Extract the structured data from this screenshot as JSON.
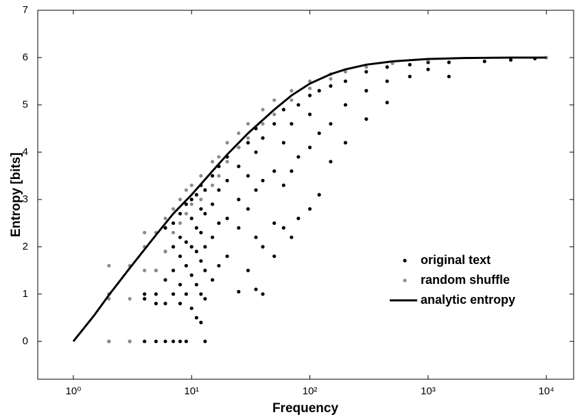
{
  "chart_data": {
    "type": "scatter",
    "x_label": "Frequency",
    "y_label": "Entropy [bits]",
    "xlog": true,
    "xlim": [
      0.5,
      17000
    ],
    "ylim": [
      -0.8,
      7
    ],
    "xticks": [
      {
        "value": 1,
        "label": "10⁰"
      },
      {
        "value": 10,
        "label": "10¹"
      },
      {
        "value": 100,
        "label": "10²"
      },
      {
        "value": 1000,
        "label": "10³"
      },
      {
        "value": 10000,
        "label": "10⁴"
      }
    ],
    "yticks": [
      0,
      1,
      2,
      3,
      4,
      5,
      6,
      7
    ],
    "legend": "lower right",
    "series": [
      {
        "name": "original text",
        "color": "#000000",
        "style": "points",
        "x": [
          2,
          2,
          3,
          4,
          4,
          4,
          5,
          5,
          5,
          5,
          6,
          6,
          6,
          6,
          6,
          7,
          7,
          7,
          7,
          7,
          8,
          8,
          8,
          8,
          8,
          8,
          9,
          9,
          9,
          9,
          9,
          10,
          10,
          10,
          10,
          10,
          11,
          11,
          11,
          11,
          11,
          12,
          12,
          12,
          12,
          12,
          12,
          13,
          13,
          13,
          13,
          13,
          13,
          15,
          15,
          15,
          15,
          17,
          17,
          17,
          17,
          20,
          20,
          20,
          20,
          25,
          25,
          25,
          25,
          25,
          30,
          30,
          30,
          30,
          35,
          35,
          35,
          35,
          35,
          40,
          40,
          40,
          40,
          50,
          50,
          50,
          50,
          60,
          60,
          60,
          60,
          70,
          70,
          70,
          80,
          80,
          80,
          100,
          100,
          100,
          100,
          120,
          120,
          120,
          150,
          150,
          150,
          200,
          200,
          200,
          300,
          300,
          300,
          450,
          450,
          450,
          700,
          700,
          1000,
          1000,
          1500,
          1500,
          3000,
          5000,
          8000
        ],
        "values": [
          0,
          1.0,
          0,
          0,
          0.9,
          1.0,
          0,
          0.8,
          1.0,
          1.5,
          0,
          0.8,
          1.3,
          1.9,
          2.4,
          0,
          1.0,
          1.5,
          2.0,
          2.5,
          0,
          0.8,
          1.2,
          1.8,
          2.2,
          2.7,
          0,
          1.0,
          1.6,
          2.1,
          2.9,
          0.7,
          1.4,
          2.0,
          2.6,
          3.0,
          0.5,
          1.2,
          1.9,
          2.4,
          3.1,
          0.4,
          1.0,
          1.7,
          2.3,
          2.8,
          3.3,
          0,
          0.9,
          1.5,
          2.0,
          2.7,
          3.2,
          1.3,
          2.2,
          2.9,
          3.5,
          1.6,
          2.5,
          3.2,
          3.7,
          1.8,
          2.6,
          3.4,
          3.9,
          1.05,
          2.4,
          3.0,
          3.7,
          4.1,
          1.5,
          2.8,
          3.5,
          4.2,
          1.1,
          2.2,
          3.2,
          4.0,
          4.5,
          1.0,
          2.0,
          3.4,
          4.3,
          1.8,
          2.5,
          3.6,
          4.6,
          2.4,
          3.3,
          4.2,
          4.9,
          2.2,
          3.6,
          4.6,
          2.6,
          3.9,
          5.0,
          2.8,
          4.1,
          4.8,
          5.2,
          3.1,
          4.4,
          5.3,
          3.8,
          4.6,
          5.4,
          4.2,
          5.0,
          5.5,
          4.7,
          5.3,
          5.7,
          5.05,
          5.5,
          5.8,
          5.6,
          5.85,
          5.75,
          5.9,
          5.6,
          5.9,
          5.92,
          5.95,
          5.98
        ]
      },
      {
        "name": "random shuffle",
        "color": "#8c8c8c",
        "style": "points",
        "x": [
          2,
          2,
          2,
          2,
          3,
          3,
          3,
          4,
          4,
          4,
          5,
          5,
          6,
          6,
          7,
          7,
          8,
          8,
          9,
          9,
          10,
          10,
          12,
          12,
          15,
          15,
          17,
          17,
          20,
          20,
          25,
          25,
          30,
          30,
          40,
          40,
          50,
          50,
          70,
          70,
          100,
          100,
          150,
          150,
          200,
          300,
          500,
          1000,
          10000
        ],
        "values": [
          0,
          0.9,
          1.0,
          1.6,
          0,
          0.9,
          1.6,
          1.5,
          2.0,
          2.3,
          1.5,
          2.3,
          1.9,
          2.6,
          2.3,
          2.8,
          2.5,
          3.0,
          2.7,
          3.2,
          2.9,
          3.3,
          3.0,
          3.5,
          3.3,
          3.8,
          3.5,
          3.9,
          3.8,
          4.2,
          4.1,
          4.4,
          4.3,
          4.6,
          4.6,
          4.9,
          4.8,
          5.1,
          5.1,
          5.3,
          5.35,
          5.5,
          5.55,
          5.65,
          5.7,
          5.8,
          5.88,
          5.95,
          6.0
        ]
      },
      {
        "name": "analytic entropy",
        "color": "#000000",
        "style": "line",
        "x": [
          1,
          1.5,
          2,
          3,
          5,
          7,
          10,
          15,
          20,
          30,
          50,
          70,
          100,
          150,
          200,
          300,
          500,
          1000,
          2000,
          5000,
          10000
        ],
        "values": [
          0,
          0.55,
          0.98,
          1.55,
          2.25,
          2.7,
          3.1,
          3.6,
          3.95,
          4.4,
          4.9,
          5.2,
          5.45,
          5.65,
          5.75,
          5.85,
          5.92,
          5.97,
          5.99,
          6.0,
          6.0
        ]
      }
    ]
  }
}
